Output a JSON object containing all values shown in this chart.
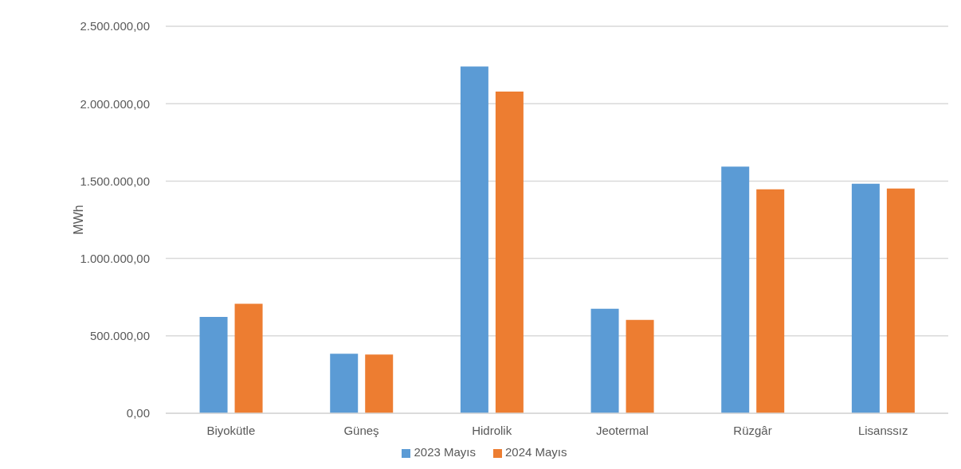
{
  "chart_data": {
    "type": "bar",
    "ylabel": "MWh",
    "categories": [
      "Biyokütle",
      "Güneş",
      "Hidrolik",
      "Jeotermal",
      "Rüzgâr",
      "Lisanssız"
    ],
    "series": [
      {
        "name": "2023 Mayıs",
        "color": "#5b9bd5",
        "values": [
          623000,
          385000,
          2240000,
          675000,
          1593000,
          1483000
        ]
      },
      {
        "name": "2024 Mayıs",
        "color": "#ed7d31",
        "values": [
          707000,
          379000,
          2078000,
          603000,
          1447000,
          1452000
        ]
      }
    ],
    "ylim": [
      0,
      2500000
    ],
    "yticks": [
      {
        "value": 0,
        "label": "0,00"
      },
      {
        "value": 500000,
        "label": "500.000,00"
      },
      {
        "value": 1000000,
        "label": "1.000.000,00"
      },
      {
        "value": 1500000,
        "label": "1.500.000,00"
      },
      {
        "value": 2000000,
        "label": "2.000.000,00"
      },
      {
        "value": 2500000,
        "label": "2.500.000,00"
      }
    ],
    "grid": "y",
    "legend": "bottom"
  }
}
